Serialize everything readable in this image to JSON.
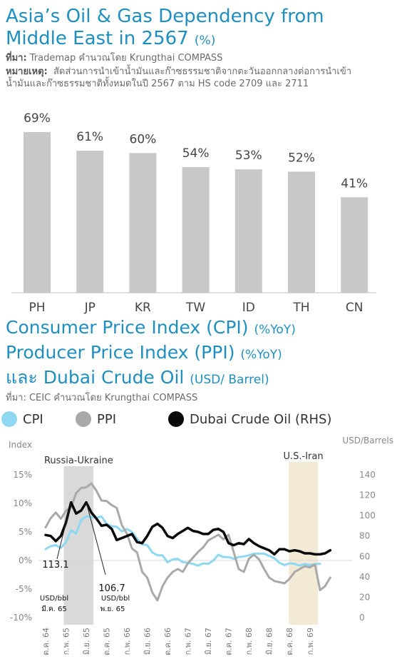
{
  "chart1": {
    "title_main": "Asia’s Oil & Gas Dependency from",
    "title_line2": "Middle East in 2567",
    "title_unit": "(%)",
    "source_label": "ที่มา:",
    "source_text": "Trademap คำนวณโดย Krungthai COMPASS",
    "note_label": "หมายเหตุ:",
    "note_line1": "สัดส่วนการนำเข้าน้ำมันและก๊าซธรรมชาติจากตะวันออกกลางต่อการนำเข้า",
    "note_line2": "น้ำมันและก๊าซธรรมชาติทั้งหมดในปี 2567 ตาม HS code 2709 และ 2711"
  },
  "chart2": {
    "title_line1": "Consumer Price Index (CPI)",
    "title_line1_unit": "(%YoY)",
    "title_line2": "Producer Price Index (PPI)",
    "title_line2_unit": "(%YoY)",
    "title_line3": "และ Dubai Crude Oil",
    "title_line3_unit": "(USD/ Barrel)",
    "source": "ที่มา: CEIC คำนวณโดย Krungthai COMPASS",
    "legend": [
      "CPI",
      "PPI",
      "Dubai Crude Oil (RHS)"
    ],
    "left_axis_label": "Index",
    "right_axis_label": "USD/Barrels",
    "annotations": {
      "russia_ukraine": "Russia-Ukraine",
      "us_iran": "U.S.-Iran",
      "a1_value": "113.1",
      "a1_unit": "USD/bbl",
      "a1_date": "มี.ค. 65",
      "a2_value": "106.7",
      "a2_unit": "USD/bbl",
      "a2_date": "พ.ย. 65"
    }
  },
  "colors": {
    "title_blue": "#1f8fbf",
    "bar_gray": "#c8c8c8",
    "cpi": "#8fd8f2",
    "ppi": "#a9a9a9",
    "oil": "#0a0a0a",
    "russia_shade": "#d9d9d9",
    "iran_shade": "#f3ead5"
  },
  "chart_data": [
    {
      "type": "bar",
      "categories": [
        "PH",
        "JP",
        "KR",
        "TW",
        "ID",
        "TH",
        "CN"
      ],
      "values": [
        69,
        61,
        60,
        54,
        53,
        52,
        41
      ],
      "labels": [
        "69%",
        "61%",
        "60%",
        "54%",
        "53%",
        "52%",
        "41%"
      ],
      "title": "Asia’s Oil & Gas Dependency from Middle East in 2567 (%)",
      "ylim": [
        0,
        75
      ],
      "grid": false
    },
    {
      "type": "line",
      "x_tick_labels": [
        "ต.ค. 64",
        "ก.พ. 65",
        "มิ.ย. 65",
        "ต.ค. 65",
        "ก.พ. 66",
        "มิ.ย. 66",
        "ต.ค. 66",
        "ก.พ. 67",
        "มิ.ย. 67",
        "ต.ค. 67",
        "ก.พ. 68",
        "มิ.ย. 68",
        "ต.ค. 68",
        "ก.พ. 69"
      ],
      "x_start": "2021-10",
      "x_end": "2026-03",
      "left_axis": {
        "label": "Index",
        "ticks": [
          "15%",
          "10%",
          "5%",
          "0%",
          "-5%",
          "-10%"
        ],
        "ylim": [
          -10,
          15
        ]
      },
      "right_axis": {
        "label": "USD/Barrels",
        "ticks": [
          "140",
          "120",
          "100",
          "80",
          "60",
          "40",
          "20",
          "0"
        ],
        "ylim": [
          0,
          140
        ]
      },
      "shaded_periods": [
        {
          "label": "Russia-Ukraine",
          "start": "2022-02",
          "end": "2022-07"
        },
        {
          "label": "U.S.-Iran",
          "start": "2025-10",
          "end": "2026-03"
        }
      ],
      "series": [
        {
          "name": "CPI",
          "axis": "left",
          "values": [
            2.0,
            2.5,
            2.7,
            2.2,
            3.2,
            5.3,
            4.7,
            7.1,
            7.7,
            7.6,
            7.5,
            7.7,
            6.4,
            6.0,
            5.9,
            5.1,
            5.5,
            5.0,
            3.8,
            2.8,
            2.7,
            1.4,
            0.9,
            0.9,
            -0.3,
            0.2,
            0.3,
            -0.3,
            -0.4,
            -0.6,
            -0.9,
            -0.5,
            -0.6,
            0.0,
            1.0,
            0.6,
            0.6,
            0.3,
            0.6,
            0.7,
            0.9,
            1.2,
            1.2,
            1.2,
            0.8,
            0.4,
            -0.4,
            -0.8,
            -0.5,
            -0.6,
            -0.9,
            -0.6,
            -0.8,
            -0.6,
            -0.6
          ]
        },
        {
          "name": "PPI",
          "axis": "left",
          "values": [
            5.8,
            7.4,
            8.4,
            7.3,
            8.7,
            9.3,
            11.8,
            12.7,
            12.8,
            13.5,
            12.2,
            10.5,
            10.4,
            9.7,
            9.2,
            6.2,
            4.7,
            2.1,
            1.4,
            -2.0,
            -3.0,
            -5.6,
            -7.0,
            -4.5,
            -3.0,
            -2.0,
            -1.5,
            -2.0,
            -0.5,
            0.5,
            1.5,
            2.3,
            3.5,
            4.0,
            4.5,
            3.7,
            4.5,
            1.5,
            -1.5,
            -2.0,
            0.3,
            1.0,
            0.2,
            -1.5,
            -3.0,
            -3.6,
            -3.8,
            -4.0,
            -3.2,
            -2.0,
            -1.5,
            -1.0,
            -1.2,
            -0.7,
            -5.2,
            -4.5,
            -3.0
          ]
        },
        {
          "name": "Dubai Crude Oil (RHS)",
          "axis": "right",
          "values": [
            81,
            80,
            75,
            80,
            93,
            113,
            102,
            105,
            113,
            103,
            97,
            90,
            91,
            87,
            76,
            78,
            80,
            82,
            74,
            73,
            80,
            89,
            92,
            88,
            80,
            78,
            82,
            85,
            88,
            85,
            84,
            82,
            82,
            86,
            87,
            84,
            73,
            71,
            73,
            72,
            77,
            73,
            70,
            68,
            66,
            62,
            67,
            67,
            65,
            66,
            65,
            63,
            63,
            62,
            62,
            63,
            66
          ]
        }
      ]
    }
  ]
}
